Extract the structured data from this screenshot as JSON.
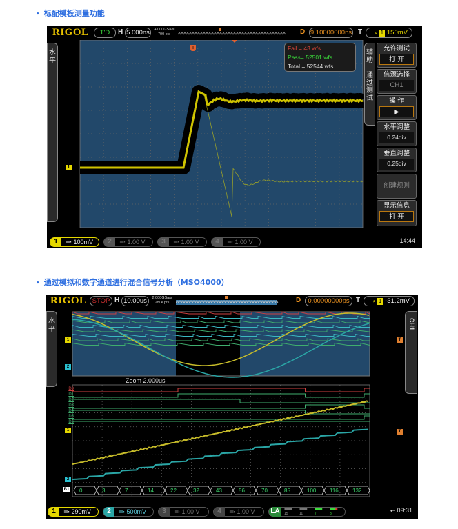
{
  "sections": [
    {
      "title": "标配模板测量功能"
    },
    {
      "title": "通过模拟和数字通道进行混合信号分析（MSO4000）"
    }
  ],
  "scope1": {
    "logo": "RIGOL",
    "status": "T'D",
    "h_label": "H",
    "timebase": "5.000ns",
    "sample_rate": "4.000GSa/s",
    "mem_depth": "700 pts",
    "d_label": "D",
    "delay": "9.10000000ns",
    "t_label": "T",
    "trigger_level": "150mV",
    "trigger_ch": "1",
    "left_tab": "水平",
    "right_tab_1": "辅助",
    "right_tab_2": "通过测试",
    "stats": {
      "fail": "Fail   = 43  wfs",
      "pass": "Pass= 52501  wfs",
      "total": "Total = 52544  wfs"
    },
    "menu": [
      {
        "title": "允许测试",
        "value": "打  开"
      },
      {
        "title": "信源选择",
        "value": "CH1"
      },
      {
        "title": "操    作",
        "value": "▶"
      },
      {
        "title": "水平调整",
        "value": "0.24div"
      },
      {
        "title": "垂直调整",
        "value": "0.25div"
      },
      {
        "title": "创建规则",
        "value": ""
      },
      {
        "title": "显示信息",
        "value": "打  开"
      }
    ],
    "channels": [
      {
        "n": "1",
        "scale": "100mV"
      },
      {
        "n": "2",
        "scale": "1.00 V"
      },
      {
        "n": "3",
        "scale": "1.00 V"
      },
      {
        "n": "4",
        "scale": "1.00 V"
      }
    ],
    "ch1_marker": "1",
    "trig_marker": "T",
    "clock": "14:44",
    "colors": {
      "ch1": "#e5d800",
      "grid_bg": "#22486a",
      "fail": "#e0463a",
      "pass": "#3bdc3b"
    }
  },
  "scope2": {
    "logo": "RIGOL",
    "status": "STOP",
    "h_label": "H",
    "timebase": "10.00us",
    "sample_rate": "2.000GSa/s",
    "mem_depth": "280k pts",
    "d_label": "D",
    "delay": "0.00000000ps",
    "t_label": "T",
    "trigger_level": "-31.2mV",
    "trigger_ch": "1",
    "left_tab": "水平",
    "right_tab": "CH1",
    "zoom_label": "Zoom  2.000us",
    "digital_labels": [
      "D0",
      "D1",
      "D2",
      "D3",
      "D4",
      "D5",
      "D6"
    ],
    "ch1_marker": "1",
    "ch2_marker": "2",
    "bus_marker": "B1",
    "trig_marker": "T",
    "bus_values": [
      "0",
      "3",
      "7",
      "14",
      "22",
      "32",
      "43",
      "56",
      "70",
      "85",
      "100",
      "116",
      "132"
    ],
    "channels": [
      {
        "n": "1",
        "scale": "290mV"
      },
      {
        "n": "2",
        "scale": "500mV"
      },
      {
        "n": "3",
        "scale": "1.00 V"
      },
      {
        "n": "4",
        "scale": "1.00 V"
      }
    ],
    "la": {
      "label": "LA",
      "groups": [
        "15",
        "11",
        "7",
        "3"
      ]
    },
    "clock": "09:31",
    "colors": {
      "ch1": "#c8bd2a",
      "ch2": "#2aa6a6",
      "d0": "#d04040",
      "digital": "#3fae6e"
    }
  }
}
